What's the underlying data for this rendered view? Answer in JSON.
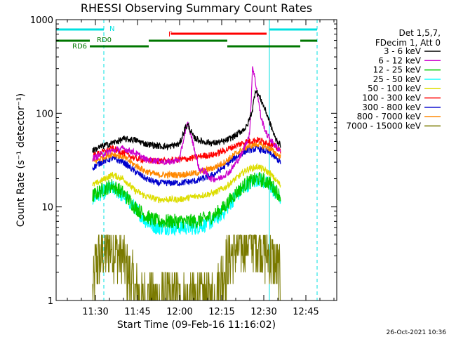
{
  "chart_data": {
    "type": "line",
    "title": "RHESSI Observing Summary Count Rates",
    "xlabel": "Start Time (09-Feb-16 11:16:02)",
    "ylabel": "Count Rate (s⁻¹ detector⁻¹)",
    "y_scale": "log",
    "ylim": [
      1,
      1000
    ],
    "xlim_minutes": [
      0,
      100
    ],
    "x_tick_labels": [
      "11:30",
      "11:45",
      "12:00",
      "12:15",
      "12:30",
      "12:45"
    ],
    "x_ticks_minutes": [
      14,
      29,
      44,
      59,
      74,
      89
    ],
    "y_ticks": [
      1,
      10,
      100,
      1000
    ],
    "y_tick_labels": [
      "1",
      "10",
      "100",
      "1000"
    ],
    "legend_header": [
      "Det 1,5,7,",
      "FDecim 1, Att 0"
    ],
    "legend_position": "right, outside plot",
    "series": [
      {
        "name": "3 - 6 keV",
        "color": "#000000",
        "points": [
          [
            13,
            40
          ],
          [
            16,
            44
          ],
          [
            20,
            48
          ],
          [
            24,
            53
          ],
          [
            28,
            52
          ],
          [
            32,
            47
          ],
          [
            36,
            45
          ],
          [
            40,
            44
          ],
          [
            44,
            47
          ],
          [
            46,
            70
          ],
          [
            47,
            75
          ],
          [
            49,
            55
          ],
          [
            52,
            50
          ],
          [
            56,
            48
          ],
          [
            60,
            50
          ],
          [
            64,
            58
          ],
          [
            68,
            72
          ],
          [
            70,
            110
          ],
          [
            71,
            180
          ],
          [
            73,
            140
          ],
          [
            75,
            100
          ],
          [
            78,
            55
          ],
          [
            80,
            45
          ]
        ]
      },
      {
        "name": "6 - 12 keV",
        "color": "#cc00cc",
        "points": [
          [
            13,
            33
          ],
          [
            16,
            36
          ],
          [
            20,
            40
          ],
          [
            24,
            42
          ],
          [
            28,
            38
          ],
          [
            32,
            32
          ],
          [
            36,
            31
          ],
          [
            40,
            30
          ],
          [
            44,
            32
          ],
          [
            46,
            65
          ],
          [
            47,
            78
          ],
          [
            49,
            45
          ],
          [
            51,
            25
          ],
          [
            53,
            24
          ],
          [
            55,
            20
          ],
          [
            58,
            20
          ],
          [
            62,
            24
          ],
          [
            66,
            36
          ],
          [
            69,
            60
          ],
          [
            70,
            320
          ],
          [
            71,
            220
          ],
          [
            73,
            90
          ],
          [
            75,
            60
          ],
          [
            78,
            45
          ],
          [
            80,
            40
          ]
        ]
      },
      {
        "name": "12 - 25 keV",
        "color": "#00cc00",
        "points": [
          [
            13,
            13
          ],
          [
            16,
            15
          ],
          [
            20,
            17
          ],
          [
            24,
            14
          ],
          [
            28,
            10
          ],
          [
            32,
            8
          ],
          [
            36,
            7
          ],
          [
            40,
            7
          ],
          [
            44,
            7
          ],
          [
            50,
            7
          ],
          [
            56,
            8
          ],
          [
            60,
            10
          ],
          [
            64,
            14
          ],
          [
            68,
            18
          ],
          [
            72,
            20
          ],
          [
            76,
            18
          ],
          [
            80,
            13
          ]
        ]
      },
      {
        "name": "25 - 50 keV",
        "color": "#00ffff",
        "points": [
          [
            13,
            12
          ],
          [
            16,
            14
          ],
          [
            20,
            16
          ],
          [
            24,
            13
          ],
          [
            28,
            10
          ],
          [
            32,
            7
          ],
          [
            36,
            6
          ],
          [
            40,
            6
          ],
          [
            44,
            6
          ],
          [
            50,
            6
          ],
          [
            56,
            7
          ],
          [
            60,
            9
          ],
          [
            64,
            13
          ],
          [
            68,
            17
          ],
          [
            72,
            20
          ],
          [
            76,
            17
          ],
          [
            80,
            12
          ]
        ]
      },
      {
        "name": "50 - 100 keV",
        "color": "#dddd00",
        "points": [
          [
            13,
            17
          ],
          [
            16,
            19
          ],
          [
            20,
            22
          ],
          [
            24,
            20
          ],
          [
            28,
            15
          ],
          [
            32,
            13
          ],
          [
            36,
            12
          ],
          [
            40,
            12
          ],
          [
            44,
            12
          ],
          [
            50,
            13
          ],
          [
            56,
            14
          ],
          [
            60,
            16
          ],
          [
            64,
            20
          ],
          [
            68,
            25
          ],
          [
            72,
            27
          ],
          [
            76,
            23
          ],
          [
            80,
            17
          ]
        ]
      },
      {
        "name": "100 - 300 keV",
        "color": "#ff0000",
        "points": [
          [
            13,
            35
          ],
          [
            16,
            38
          ],
          [
            20,
            42
          ],
          [
            24,
            38
          ],
          [
            28,
            33
          ],
          [
            34,
            31
          ],
          [
            36,
            31
          ],
          [
            40,
            31
          ],
          [
            44,
            32
          ],
          [
            48,
            33
          ],
          [
            52,
            35
          ],
          [
            56,
            36
          ],
          [
            60,
            40
          ],
          [
            64,
            45
          ],
          [
            68,
            50
          ],
          [
            72,
            52
          ],
          [
            76,
            48
          ],
          [
            80,
            40
          ]
        ]
      },
      {
        "name": "300 - 800 keV",
        "color": "#0000cc",
        "points": [
          [
            13,
            26
          ],
          [
            16,
            30
          ],
          [
            20,
            33
          ],
          [
            24,
            30
          ],
          [
            28,
            24
          ],
          [
            32,
            20
          ],
          [
            36,
            18
          ],
          [
            40,
            18
          ],
          [
            44,
            18
          ],
          [
            50,
            19
          ],
          [
            56,
            22
          ],
          [
            60,
            27
          ],
          [
            64,
            34
          ],
          [
            68,
            40
          ],
          [
            72,
            42
          ],
          [
            76,
            38
          ],
          [
            80,
            30
          ]
        ]
      },
      {
        "name": "800 - 7000 keV",
        "color": "#ff8800",
        "points": [
          [
            13,
            30
          ],
          [
            16,
            33
          ],
          [
            20,
            37
          ],
          [
            24,
            34
          ],
          [
            28,
            28
          ],
          [
            32,
            24
          ],
          [
            36,
            22
          ],
          [
            40,
            22
          ],
          [
            44,
            22
          ],
          [
            50,
            23
          ],
          [
            56,
            26
          ],
          [
            60,
            30
          ],
          [
            64,
            37
          ],
          [
            68,
            44
          ],
          [
            72,
            47
          ],
          [
            76,
            42
          ],
          [
            80,
            34
          ]
        ]
      },
      {
        "name": "7000 - 15000 keV",
        "color": "#7a7a00",
        "points": [
          [
            13,
            1
          ],
          [
            14,
            2.4
          ],
          [
            16,
            3
          ],
          [
            18,
            3.6
          ],
          [
            20,
            4
          ],
          [
            22,
            3.2
          ],
          [
            24,
            2.6
          ],
          [
            26,
            1.8
          ],
          [
            28,
            1.3
          ],
          [
            30,
            1
          ],
          [
            56,
            1
          ],
          [
            58,
            1.4
          ],
          [
            60,
            2.2
          ],
          [
            62,
            3
          ],
          [
            64,
            3.6
          ],
          [
            66,
            4
          ],
          [
            68,
            4.4
          ],
          [
            70,
            4.6
          ],
          [
            72,
            4.2
          ],
          [
            74,
            3.6
          ],
          [
            76,
            3
          ],
          [
            78,
            2.4
          ],
          [
            80,
            1.6
          ]
        ]
      }
    ],
    "state_bars": [
      {
        "label": "N",
        "color": "#00e0e0",
        "segments": [
          [
            0,
            17
          ],
          [
            76,
            93
          ]
        ]
      },
      {
        "label": "F",
        "color": "#ff0000",
        "segments": [
          [
            41,
            75
          ]
        ]
      },
      {
        "label": "RD0",
        "color": "#007700",
        "segments": [
          [
            0,
            12
          ],
          [
            33,
            61
          ],
          [
            87,
            93
          ]
        ]
      },
      {
        "label": "RD6",
        "color": "#007700",
        "segments": [
          [
            12,
            33
          ],
          [
            61,
            87
          ]
        ]
      }
    ],
    "vertical_lines": [
      {
        "x": 17,
        "style": "dashed",
        "color": "#00e0e0"
      },
      {
        "x": 76,
        "style": "solid",
        "color": "#00e0e0"
      },
      {
        "x": 93,
        "style": "dashed",
        "color": "#00e0e0"
      }
    ],
    "grid": false
  },
  "footer": {
    "timestamp": "26-Oct-2021 10:36"
  }
}
